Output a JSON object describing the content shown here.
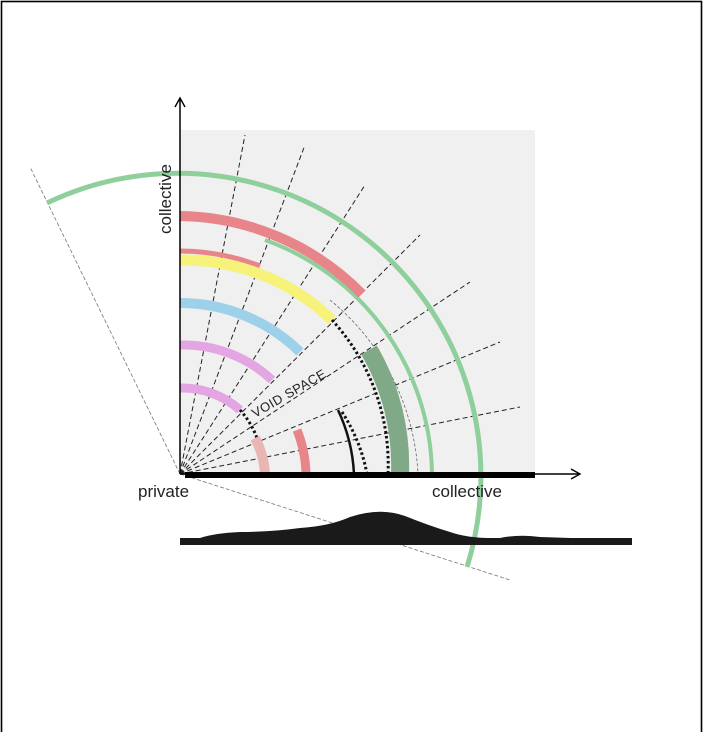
{
  "labels": {
    "y_axis": "collective",
    "x_axis_origin": "private",
    "x_axis_end": "collective",
    "void_space": "VOID SPACE"
  },
  "colors": {
    "background_panel": "#f0f0f0",
    "frame": "#000000",
    "green": "#8fcf9c",
    "dark_green": "#7fa987",
    "red": "#e8858a",
    "light_red": "#eab6b4",
    "yellow": "#f6f27a",
    "blue": "#9dd1ea",
    "pink": "#e3a6e3",
    "ground": "#1a1a1a"
  }
}
